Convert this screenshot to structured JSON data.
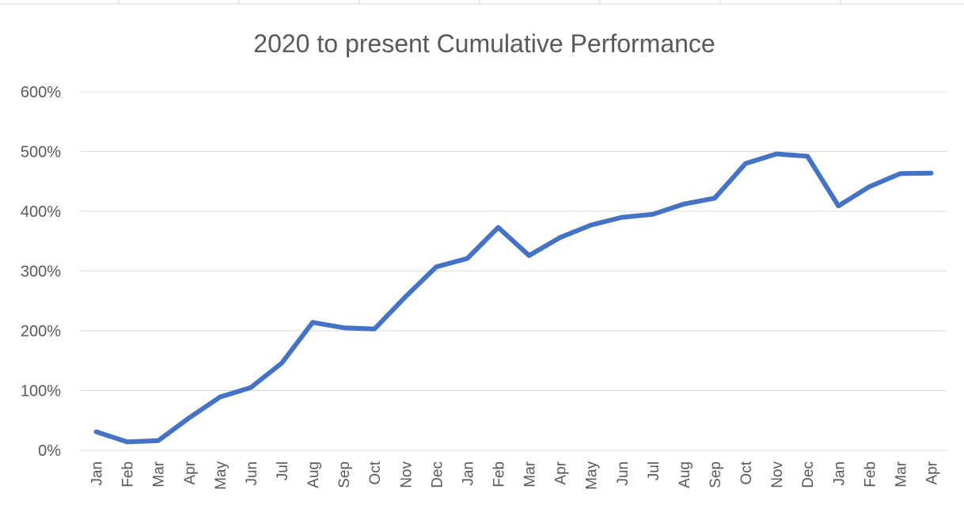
{
  "chart_data": {
    "type": "line",
    "title": "2020 to present Cumulative Performance",
    "xlabel": "",
    "ylabel": "",
    "categories": [
      "Jan",
      "Feb",
      "Mar",
      "Apr",
      "May",
      "Jun",
      "Jul",
      "Aug",
      "Sep",
      "Oct",
      "Nov",
      "Dec",
      "Jan",
      "Feb",
      "Mar",
      "Apr",
      "May",
      "Jun",
      "Jul",
      "Aug",
      "Sep",
      "Oct",
      "Nov",
      "Dec",
      "Jan",
      "Feb",
      "Mar",
      "Apr"
    ],
    "series": [
      {
        "values": [
          31,
          14,
          16,
          54,
          89,
          105,
          146,
          214,
          205,
          203,
          257,
          307,
          321,
          373,
          326,
          356,
          377,
          390,
          395,
          412,
          422,
          480,
          496,
          492,
          409,
          441,
          463,
          464
        ],
        "color": "#4472c4"
      }
    ],
    "ylim": [
      0,
      600
    ],
    "yticks": [
      0,
      100,
      200,
      300,
      400,
      500,
      600
    ],
    "ytick_labels": [
      "0%",
      "100%",
      "200%",
      "300%",
      "400%",
      "500%",
      "600%"
    ],
    "grid": true,
    "legend": "none"
  }
}
